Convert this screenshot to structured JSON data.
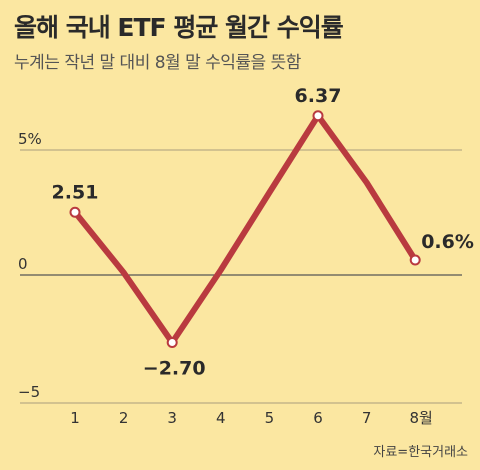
{
  "title": "올해 국내 ETF 평균 월간 수익률",
  "subtitle": "누계는 작년 말 대비 8월 말 수익률을 뜻함",
  "source": "자료=한국거래소",
  "colors": {
    "background": "#fbe7a1",
    "line": "#b93a3f",
    "grid": "#8c8672",
    "text": "#2a2a2a"
  },
  "chart_data": {
    "type": "line",
    "x": [
      1,
      2,
      3,
      4,
      5,
      6,
      7,
      8
    ],
    "x_tick_labels": [
      "1",
      "2",
      "3",
      "4",
      "5",
      "6",
      "7",
      "8월"
    ],
    "y_tick_labels": [
      "5%",
      "0",
      "−5"
    ],
    "y_ticks": [
      5,
      0,
      -5
    ],
    "ylim": [
      -5,
      6.4
    ],
    "grid": true,
    "series": [
      {
        "values": [
          2.51,
          0.1,
          -2.7,
          0.2,
          3.3,
          6.37,
          3.7,
          0.6
        ]
      }
    ],
    "data_labels": [
      {
        "index": 0,
        "text": "2.51"
      },
      {
        "index": 2,
        "text": "−2.70"
      },
      {
        "index": 5,
        "text": "6.37"
      },
      {
        "index": 7,
        "text": "0.6%"
      }
    ]
  }
}
